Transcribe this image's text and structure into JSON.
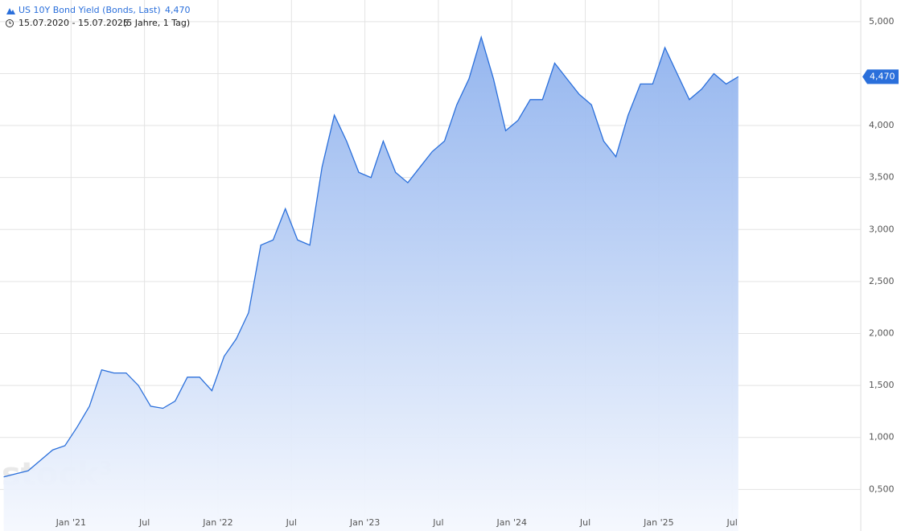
{
  "chart_data": {
    "type": "area",
    "title": "US 10Y Bond Yield (Bonds, Last)",
    "last_label": "4,470",
    "range": "15.07.2020 - 15.07.2025",
    "period": "(5 Jahre, 1 Tag)",
    "watermark": "stock³",
    "x": [
      "2020-07",
      "2020-08",
      "2020-09",
      "2020-10",
      "2020-11",
      "2020-12",
      "2021-01",
      "2021-02",
      "2021-03",
      "2021-04",
      "2021-05",
      "2021-06",
      "2021-07",
      "2021-08",
      "2021-09",
      "2021-10",
      "2021-11",
      "2021-12",
      "2022-01",
      "2022-02",
      "2022-03",
      "2022-04",
      "2022-05",
      "2022-06",
      "2022-07",
      "2022-08",
      "2022-09",
      "2022-10",
      "2022-11",
      "2022-12",
      "2023-01",
      "2023-02",
      "2023-03",
      "2023-04",
      "2023-05",
      "2023-06",
      "2023-07",
      "2023-08",
      "2023-09",
      "2023-10",
      "2023-11",
      "2023-12",
      "2024-01",
      "2024-02",
      "2024-03",
      "2024-04",
      "2024-05",
      "2024-06",
      "2024-07",
      "2024-08",
      "2024-09",
      "2024-10",
      "2024-11",
      "2024-12",
      "2025-01",
      "2025-02",
      "2025-03",
      "2025-04",
      "2025-05",
      "2025-06",
      "2025-07"
    ],
    "series": [
      {
        "name": "US 10Y Bond Yield",
        "color": "#2a6fdb",
        "values": [
          0.62,
          0.65,
          0.68,
          0.78,
          0.88,
          0.92,
          1.1,
          1.3,
          1.65,
          1.62,
          1.62,
          1.5,
          1.3,
          1.28,
          1.35,
          1.58,
          1.58,
          1.45,
          1.78,
          1.95,
          2.2,
          2.85,
          2.9,
          3.2,
          2.9,
          2.85,
          3.6,
          4.1,
          3.85,
          3.55,
          3.5,
          3.85,
          3.55,
          3.45,
          3.6,
          3.75,
          3.85,
          4.2,
          4.45,
          4.85,
          4.45,
          3.95,
          4.05,
          4.25,
          4.25,
          4.6,
          4.45,
          4.3,
          4.2,
          3.85,
          3.7,
          4.1,
          4.4,
          4.4,
          4.75,
          4.5,
          4.25,
          4.35,
          4.5,
          4.4,
          4.47
        ]
      }
    ],
    "xlim": [
      "2020-07",
      "2025-08"
    ],
    "xticks": [
      {
        "value": "2021-01",
        "label": "Jan '21"
      },
      {
        "value": "2021-07",
        "label": "Jul"
      },
      {
        "value": "2022-01",
        "label": "Jan '22"
      },
      {
        "value": "2022-07",
        "label": "Jul"
      },
      {
        "value": "2023-01",
        "label": "Jan '23"
      },
      {
        "value": "2023-07",
        "label": "Jul"
      },
      {
        "value": "2024-01",
        "label": "Jan '24"
      },
      {
        "value": "2024-07",
        "label": "Jul"
      },
      {
        "value": "2025-01",
        "label": "Jan '25"
      },
      {
        "value": "2025-07",
        "label": "Jul"
      }
    ],
    "ylim": [
      0.1,
      5.2
    ],
    "yticks": [
      {
        "value": 0.5,
        "label": "0,500"
      },
      {
        "value": 1.0,
        "label": "1,000"
      },
      {
        "value": 1.5,
        "label": "1,500"
      },
      {
        "value": 2.0,
        "label": "2,000"
      },
      {
        "value": 2.5,
        "label": "2,500"
      },
      {
        "value": 3.0,
        "label": "3,000"
      },
      {
        "value": 3.5,
        "label": "3,500"
      },
      {
        "value": 4.0,
        "label": "4,000"
      },
      {
        "value": 4.5,
        "label": "4,500"
      },
      {
        "value": 5.0,
        "label": "5,000"
      }
    ],
    "grid": true
  }
}
